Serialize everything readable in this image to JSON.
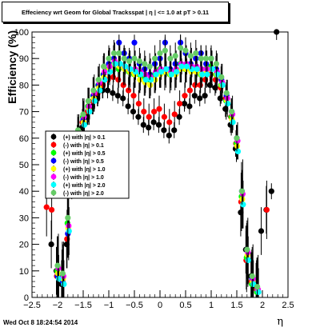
{
  "title": "Effeciency wrt Geom for Global Tracksspat | η | <= 1.0 at pT > 0.11",
  "footer": "Wed Oct  8 18:24:54 2014",
  "chart_data": {
    "type": "scatter",
    "title": "Effeciency wrt Geom for Global Tracksspat | η | <= 1.0 at pT > 0.11",
    "xlabel": "η",
    "ylabel": "Efficiency (%)",
    "xlim": [
      -2.5,
      2.5
    ],
    "ylim": [
      0,
      100
    ],
    "xticks": [
      "−2.5",
      "−2",
      "−1.5",
      "−1",
      "−0.5",
      "0",
      "0.5",
      "1",
      "1.5",
      "2",
      "2.5"
    ],
    "yticks": [
      "0",
      "10",
      "20",
      "30",
      "40",
      "50",
      "60",
      "70",
      "80",
      "90",
      "100"
    ],
    "grid": false,
    "legend_position": "left-middle",
    "legend_entries": [
      "(+) with |η| > 0.1",
      "(-) with |η| > 0.1",
      "(+) with |η| > 0.5",
      "(-) with |η| > 0.5",
      "(+) with |η| > 1.0",
      "(-) with |η| > 1.0",
      "(+) with |η| > 2.0",
      "(-) with |η| > 2.0"
    ],
    "colors": [
      "#000000",
      "#ff0000",
      "#00ff00",
      "#0000ff",
      "#ffff00",
      "#ff00ff",
      "#00ffff",
      "#66cc66"
    ],
    "x": [
      -2.3,
      -2.2,
      -2.1,
      -2.0,
      -1.9,
      -1.8,
      -1.7,
      -1.6,
      -1.5,
      -1.4,
      -1.3,
      -1.2,
      -1.1,
      -1.0,
      -0.9,
      -0.8,
      -0.7,
      -0.6,
      -0.5,
      -0.4,
      -0.3,
      -0.2,
      -0.1,
      0.0,
      0.1,
      0.2,
      0.3,
      0.4,
      0.5,
      0.6,
      0.7,
      0.8,
      0.9,
      1.0,
      1.1,
      1.2,
      1.3,
      1.4,
      1.5,
      1.6,
      1.7,
      1.8,
      1.9,
      2.0,
      2.1,
      2.2,
      2.3
    ],
    "series": [
      {
        "name": "(+) with |η| > 0.1",
        "values": [
          null,
          null,
          20,
          10,
          5,
          20,
          40,
          58,
          64,
          68,
          72,
          75,
          78,
          78,
          77,
          76,
          75,
          72,
          70,
          68,
          65,
          64,
          66,
          65,
          63,
          61,
          63,
          68,
          73,
          72,
          76,
          75,
          76,
          80,
          79,
          75,
          71,
          65,
          56,
          32,
          18,
          8,
          4,
          25,
          33,
          40,
          100
        ]
      },
      {
        "name": "(-) with |η| > 0.1",
        "values": [
          null,
          34,
          33,
          8,
          7,
          22,
          44,
          60,
          66,
          70,
          74,
          77,
          80,
          82,
          83,
          82,
          80,
          78,
          76,
          73,
          70,
          68,
          70,
          71,
          68,
          66,
          69,
          73,
          76,
          78,
          80,
          80,
          82,
          84,
          82,
          79,
          75,
          68,
          58,
          36,
          14,
          6,
          3,
          null,
          33,
          null,
          null
        ]
      },
      {
        "name": "(+) with |η| > 0.5",
        "values": [
          null,
          null,
          null,
          10,
          8,
          28,
          47,
          62,
          68,
          72,
          76,
          80,
          84,
          86,
          88,
          86,
          87,
          85,
          84,
          84,
          83,
          82,
          84,
          86,
          85,
          84,
          85,
          88,
          86,
          86,
          86,
          84,
          86,
          87,
          84,
          80,
          74,
          68,
          58,
          38,
          15,
          5,
          2,
          null,
          null,
          null,
          null
        ]
      },
      {
        "name": "(-) with |η| > 0.5",
        "values": [
          null,
          null,
          null,
          8,
          6,
          24,
          45,
          60,
          67,
          71,
          76,
          80,
          84,
          88,
          90,
          96,
          92,
          90,
          96,
          88,
          86,
          84,
          88,
          90,
          96,
          86,
          88,
          96,
          92,
          88,
          90,
          92,
          88,
          90,
          86,
          82,
          76,
          70,
          60,
          40,
          18,
          7,
          3,
          null,
          null,
          null,
          null
        ]
      },
      {
        "name": "(+) with |η| > 1.0",
        "values": [
          null,
          null,
          null,
          9,
          7,
          26,
          46,
          61,
          66,
          71,
          75,
          79,
          83,
          86,
          88,
          87,
          86,
          85,
          84,
          82,
          81,
          80,
          82,
          84,
          85,
          84,
          84,
          86,
          86,
          85,
          85,
          84,
          85,
          86,
          84,
          80,
          74,
          67,
          57,
          37,
          16,
          6,
          3,
          null,
          null,
          null,
          null
        ]
      },
      {
        "name": "(-) with |η| > 1.0",
        "values": [
          null,
          null,
          null,
          11,
          8,
          27,
          48,
          62,
          68,
          72,
          77,
          81,
          85,
          87,
          89,
          88,
          87,
          86,
          86,
          85,
          84,
          83,
          85,
          86,
          86,
          85,
          86,
          88,
          88,
          87,
          87,
          86,
          86,
          86,
          85,
          81,
          75,
          69,
          59,
          39,
          17,
          7,
          3,
          null,
          null,
          null,
          null
        ]
      },
      {
        "name": "(+) with |η| > 2.0",
        "values": [
          null,
          null,
          null,
          7,
          5,
          25,
          44,
          58,
          65,
          70,
          74,
          78,
          82,
          85,
          88,
          88,
          87,
          86,
          85,
          84,
          82,
          82,
          84,
          85,
          86,
          84,
          85,
          87,
          87,
          86,
          86,
          84,
          84,
          86,
          84,
          80,
          73,
          66,
          55,
          35,
          14,
          5,
          2,
          null,
          null,
          null,
          null
        ]
      },
      {
        "name": "(-) with |η| > 2.0",
        "values": [
          null,
          null,
          null,
          12,
          9,
          30,
          50,
          63,
          69,
          74,
          78,
          82,
          87,
          90,
          92,
          92,
          90,
          89,
          90,
          89,
          88,
          87,
          90,
          92,
          93,
          90,
          91,
          94,
          93,
          91,
          92,
          90,
          90,
          90,
          88,
          83,
          77,
          70,
          60,
          40,
          18,
          8,
          4,
          null,
          null,
          null,
          null
        ]
      }
    ]
  }
}
